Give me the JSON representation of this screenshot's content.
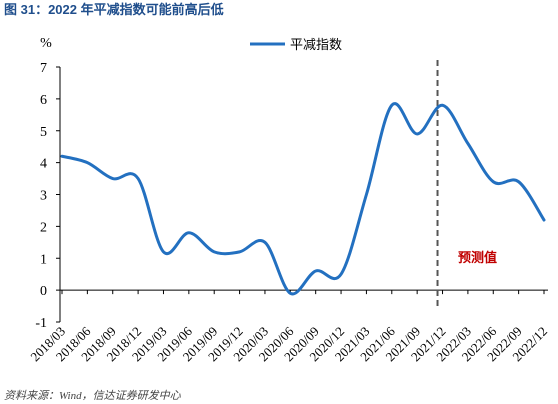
{
  "colors": {
    "title": "#1f4e8c",
    "series": "#2370c0",
    "annotation": "#c00000",
    "divider": "#555555",
    "axis": "#000000"
  },
  "chart_data": {
    "type": "line",
    "title": "图 31：2022 年平减指数可能前高后低",
    "ylabel": "%",
    "xlabel": "",
    "ylim": [
      -1,
      7
    ],
    "yticks": [
      "-1",
      "0",
      "1",
      "2",
      "3",
      "4",
      "5",
      "6",
      "7"
    ],
    "legend_position": "top-center",
    "grid": false,
    "smooth": true,
    "categories": [
      "2018/03",
      "2018/06",
      "2018/09",
      "2018/12",
      "2019/03",
      "2019/06",
      "2019/09",
      "2019/12",
      "2020/03",
      "2020/06",
      "2020/09",
      "2020/12",
      "2021/03",
      "2021/06",
      "2021/09",
      "2021/12",
      "2022/03",
      "2022/06",
      "2022/09",
      "2022/12"
    ],
    "series": [
      {
        "name": "平减指数",
        "values": [
          4.2,
          4.0,
          3.5,
          3.5,
          1.2,
          1.8,
          1.2,
          1.2,
          1.5,
          -0.1,
          0.6,
          0.5,
          3.0,
          5.8,
          4.9,
          5.8,
          4.6,
          3.4,
          3.4,
          2.2
        ]
      }
    ],
    "forecast_start": "2021/12",
    "annotation": "预测值"
  },
  "source": "资料来源：Wind，信达证券研发中心"
}
